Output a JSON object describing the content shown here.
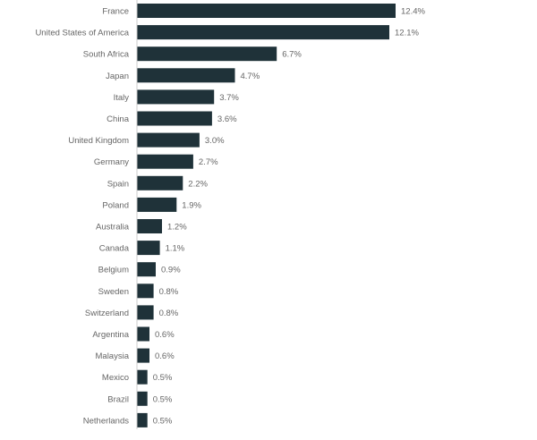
{
  "chart_data": {
    "type": "bar",
    "orientation": "horizontal",
    "title": "",
    "xlabel": "",
    "ylabel": "",
    "categories": [
      "France",
      "United States of America",
      "South Africa",
      "Japan",
      "Italy",
      "China",
      "United Kingdom",
      "Germany",
      "Spain",
      "Poland",
      "Australia",
      "Canada",
      "Belgium",
      "Sweden",
      "Switzerland",
      "Argentina",
      "Malaysia",
      "Mexico",
      "Brazil",
      "Netherlands"
    ],
    "values": [
      12.4,
      12.1,
      6.7,
      4.7,
      3.7,
      3.6,
      3.0,
      2.7,
      2.2,
      1.9,
      1.2,
      1.1,
      0.9,
      0.8,
      0.8,
      0.6,
      0.6,
      0.5,
      0.5,
      0.5
    ],
    "value_labels": [
      "12.4%",
      "12.1%",
      "6.7%",
      "4.7%",
      "3.7%",
      "3.6%",
      "3.0%",
      "2.7%",
      "2.2%",
      "1.9%",
      "1.2%",
      "1.1%",
      "0.9%",
      "0.8%",
      "0.8%",
      "0.6%",
      "0.6%",
      "0.5%",
      "0.5%",
      "0.5%"
    ],
    "unit": "%",
    "xlim": [
      0,
      12.4
    ],
    "grid": false,
    "legend": "none",
    "colors": {
      "bar": "#1f3239",
      "label_text": "#666666",
      "axis_line": "#cccccc",
      "background": "#ffffff"
    }
  }
}
